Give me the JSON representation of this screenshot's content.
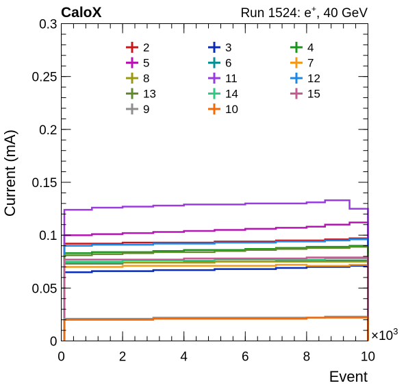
{
  "chart_data": {
    "type": "line",
    "title": "CaloX",
    "subtitle": "Run 1524: e",
    "subtitle_sup": "+",
    "subtitle_tail": ", 40 GeV",
    "xlabel": "Event",
    "ylabel": "Current (mA)",
    "x_multiplier": "×10",
    "x_multiplier_exp": "3",
    "xlim": [
      0,
      10
    ],
    "ylim": [
      0,
      0.3
    ],
    "x_ticks": [
      "0",
      "2",
      "4",
      "6",
      "8",
      "10"
    ],
    "y_ticks": [
      "0",
      "0.05",
      "0.1",
      "0.15",
      "0.2",
      "0.25",
      "0.3"
    ],
    "legend_position": "top",
    "x": [
      0.1,
      1,
      2,
      3,
      4,
      5,
      6,
      7,
      8,
      8.6,
      9.4,
      10
    ],
    "series": [
      {
        "name": "2",
        "color": "#c8171a",
        "values": [
          0.092,
          0.092,
          0.093,
          0.093,
          0.093,
          0.094,
          0.094,
          0.095,
          0.095,
          0.096,
          0.097,
          0.095
        ]
      },
      {
        "name": "3",
        "color": "#0a2bb6",
        "values": [
          0.065,
          0.066,
          0.066,
          0.067,
          0.067,
          0.068,
          0.068,
          0.069,
          0.07,
          0.07,
          0.071,
          0.068
        ]
      },
      {
        "name": "4",
        "color": "#18971c",
        "values": [
          0.083,
          0.084,
          0.084,
          0.085,
          0.086,
          0.086,
          0.087,
          0.088,
          0.089,
          0.089,
          0.09,
          0.09
        ]
      },
      {
        "name": "5",
        "color": "#b516b3",
        "values": [
          0.1,
          0.101,
          0.102,
          0.103,
          0.104,
          0.105,
          0.106,
          0.107,
          0.108,
          0.11,
          0.112,
          0.109
        ]
      },
      {
        "name": "6",
        "color": "#0e8f94",
        "values": [
          0.073,
          0.073,
          0.074,
          0.074,
          0.075,
          0.075,
          0.075,
          0.076,
          0.076,
          0.076,
          0.076,
          0.075
        ]
      },
      {
        "name": "7",
        "color": "#f39a1e",
        "values": [
          0.07,
          0.07,
          0.071,
          0.071,
          0.071,
          0.071,
          0.071,
          0.072,
          0.071,
          0.071,
          0.072,
          0.072
        ]
      },
      {
        "name": "8",
        "color": "#9a9a12",
        "values": [
          0.074,
          0.074,
          0.074,
          0.074,
          0.074,
          0.075,
          0.075,
          0.075,
          0.075,
          0.075,
          0.075,
          0.075
        ]
      },
      {
        "name": "11",
        "color": "#9a3bde",
        "values": [
          0.124,
          0.126,
          0.127,
          0.128,
          0.129,
          0.129,
          0.13,
          0.13,
          0.131,
          0.133,
          0.125,
          0.12
        ]
      },
      {
        "name": "12",
        "color": "#1e88e5",
        "values": [
          0.09,
          0.091,
          0.091,
          0.092,
          0.092,
          0.093,
          0.093,
          0.094,
          0.094,
          0.095,
          0.096,
          0.096
        ]
      },
      {
        "name": "13",
        "color": "#5e8c2a",
        "values": [
          0.081,
          0.082,
          0.083,
          0.084,
          0.084,
          0.085,
          0.086,
          0.087,
          0.088,
          0.088,
          0.089,
          0.088
        ]
      },
      {
        "name": "14",
        "color": "#2ecb82",
        "values": [
          0.075,
          0.075,
          0.076,
          0.076,
          0.076,
          0.077,
          0.077,
          0.077,
          0.077,
          0.078,
          0.078,
          0.078
        ]
      },
      {
        "name": "15",
        "color": "#c85a93",
        "values": [
          0.077,
          0.077,
          0.077,
          0.077,
          0.078,
          0.078,
          0.078,
          0.078,
          0.079,
          0.079,
          0.079,
          0.079
        ]
      },
      {
        "name": "9",
        "color": "#8e8e8e",
        "values": [
          0.021,
          0.021,
          0.021,
          0.022,
          0.022,
          0.022,
          0.022,
          0.022,
          0.022,
          0.023,
          0.023,
          0.023
        ]
      },
      {
        "name": "10",
        "color": "#f06a0a",
        "values": [
          0.02,
          0.02,
          0.02,
          0.021,
          0.021,
          0.021,
          0.021,
          0.021,
          0.022,
          0.022,
          0.022,
          0.022
        ]
      }
    ]
  }
}
